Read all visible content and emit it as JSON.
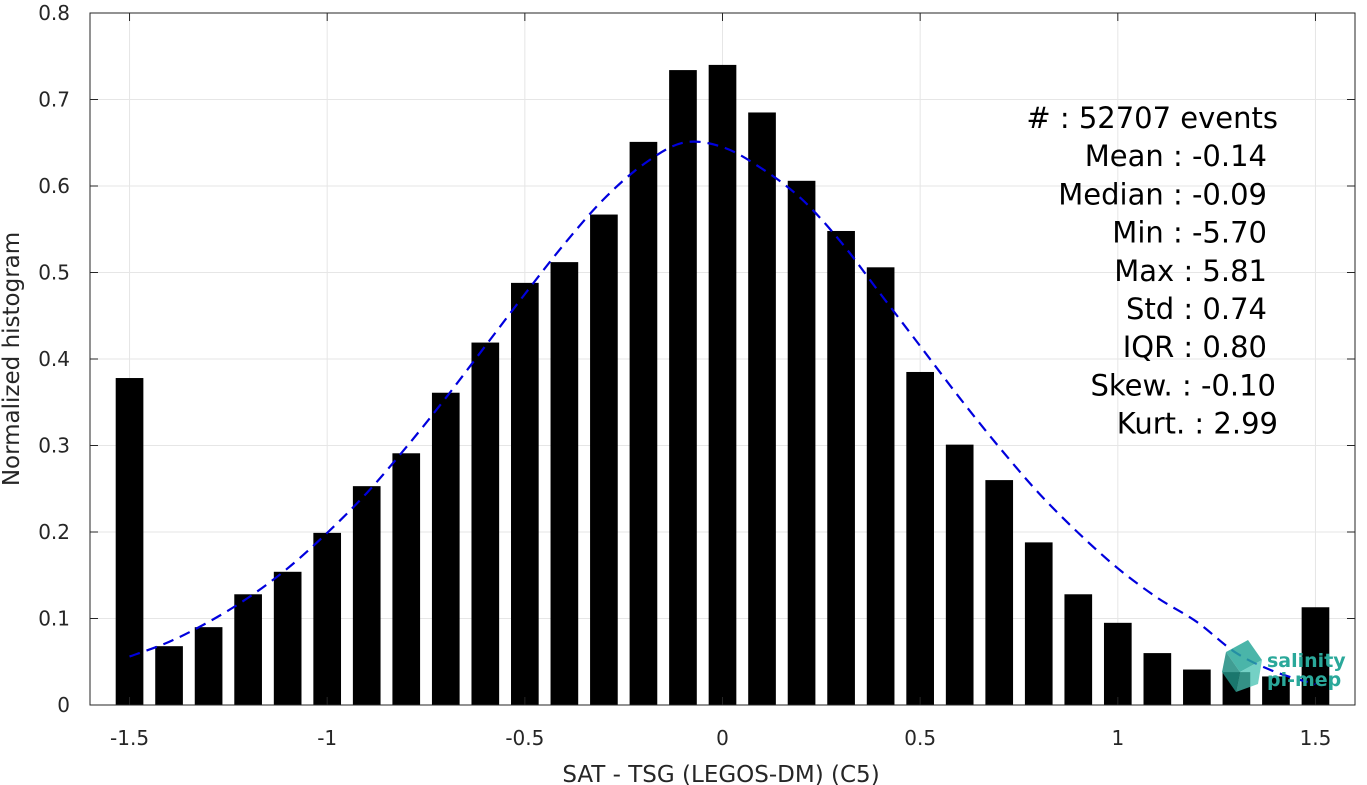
{
  "chart_data": {
    "type": "bar",
    "xlabel": "SAT - TSG (LEGOS-DM) (C5)",
    "ylabel": "Normalized histogram",
    "xlim": [
      -1.6,
      1.6
    ],
    "ylim": [
      0,
      0.8
    ],
    "xticks": [
      -1.5,
      -1,
      -0.5,
      0,
      0.5,
      1,
      1.5
    ],
    "xtick_labels": [
      "-1.5",
      "-1",
      "-0.5",
      "0",
      "0.5",
      "1",
      "1.5"
    ],
    "yticks": [
      0,
      0.1,
      0.2,
      0.3,
      0.4,
      0.5,
      0.6,
      0.7,
      0.8
    ],
    "ytick_labels": [
      "0",
      "0.1",
      "0.2",
      "0.3",
      "0.4",
      "0.5",
      "0.6",
      "0.7",
      "0.8"
    ],
    "grid": true,
    "bar_width": 0.07,
    "bar_color": "#000000",
    "series": [
      {
        "x": [
          -1.5,
          -1.4,
          -1.3,
          -1.2,
          -1.1,
          -1.0,
          -0.9,
          -0.8,
          -0.7,
          -0.6,
          -0.5,
          -0.4,
          -0.3,
          -0.2,
          -0.1,
          0.0,
          0.1,
          0.2,
          0.3,
          0.4,
          0.5,
          0.6,
          0.7,
          0.8,
          0.9,
          1.0,
          1.1,
          1.2,
          1.3,
          1.4,
          1.5
        ],
        "values": [
          0.378,
          0.068,
          0.09,
          0.128,
          0.154,
          0.199,
          0.253,
          0.291,
          0.361,
          0.419,
          0.488,
          0.512,
          0.567,
          0.651,
          0.734,
          0.74,
          0.685,
          0.606,
          0.548,
          0.506,
          0.385,
          0.301,
          0.26,
          0.188,
          0.128,
          0.095,
          0.06,
          0.041,
          0.038,
          0.033,
          0.113
        ]
      }
    ],
    "fit_curve": {
      "style": "dashed",
      "color": "#0000dd",
      "x": [
        -1.5,
        -1.4,
        -1.3,
        -1.2,
        -1.1,
        -1.0,
        -0.9,
        -0.8,
        -0.7,
        -0.6,
        -0.5,
        -0.4,
        -0.3,
        -0.2,
        -0.1,
        0.0,
        0.1,
        0.2,
        0.3,
        0.4,
        0.5,
        0.6,
        0.7,
        0.8,
        0.9,
        1.0,
        1.1,
        1.2,
        1.3,
        1.4,
        1.5
      ],
      "y": [
        0.056,
        0.073,
        0.096,
        0.124,
        0.158,
        0.199,
        0.245,
        0.298,
        0.355,
        0.415,
        0.475,
        0.533,
        0.585,
        0.625,
        0.65,
        0.645,
        0.62,
        0.585,
        0.535,
        0.475,
        0.415,
        0.355,
        0.298,
        0.245,
        0.199,
        0.158,
        0.124,
        0.096,
        0.06,
        0.038,
        0.024
      ]
    }
  },
  "stats": {
    "lines": [
      {
        "key": "#  ",
        "sep": ": ",
        "value": "52707 events"
      },
      {
        "key": "Mean ",
        "sep": ": ",
        "value": "-0.14"
      },
      {
        "key": "Median ",
        "sep": ": ",
        "value": "-0.09"
      },
      {
        "key": "Min ",
        "sep": ": ",
        "value": "-5.70"
      },
      {
        "key": "Max ",
        "sep": ": ",
        "value": "5.81"
      },
      {
        "key": "Std ",
        "sep": ": ",
        "value": "0.74"
      },
      {
        "key": "IQR ",
        "sep": ": ",
        "value": "0.80"
      },
      {
        "key": "Skew. ",
        "sep": ": ",
        "value": "-0.10"
      },
      {
        "key": "Kurt. ",
        "sep": ": ",
        "value": "2.99"
      }
    ]
  },
  "logo": {
    "line1": "salinity",
    "line2": "pi-mep",
    "color": "#2aa89a"
  }
}
